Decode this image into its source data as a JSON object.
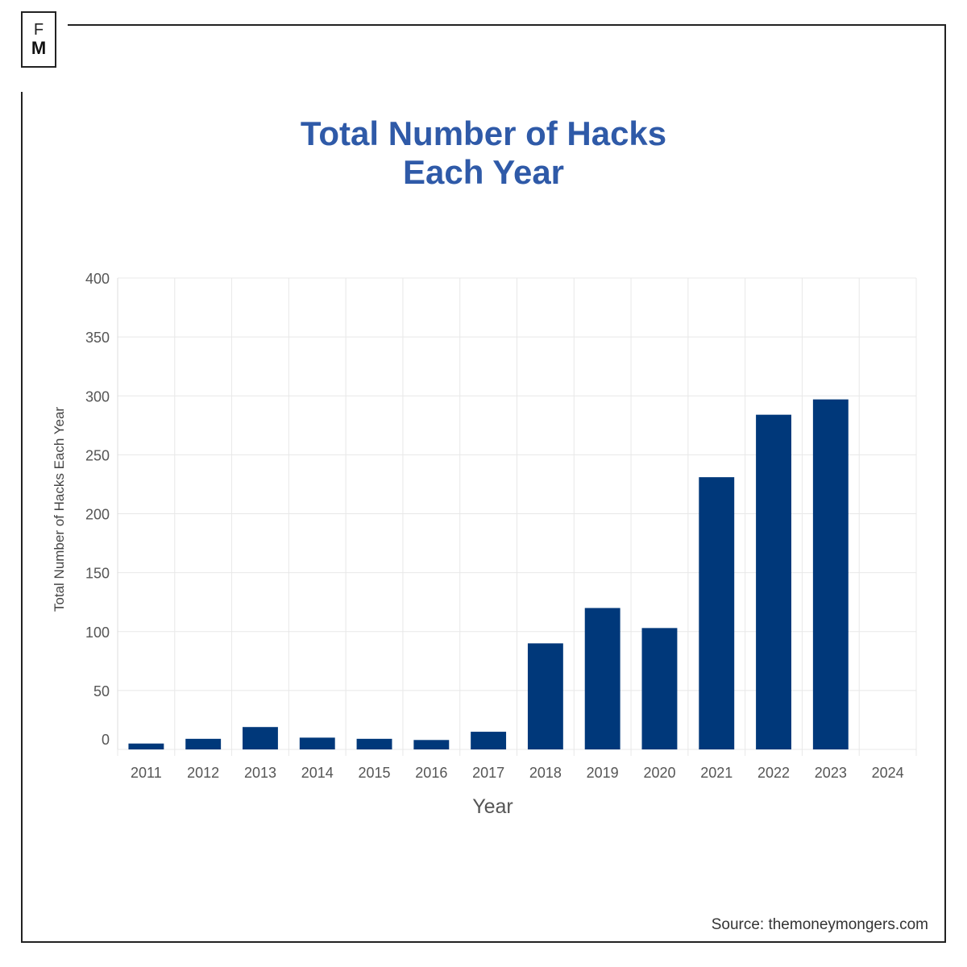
{
  "logo": {
    "line1": "F",
    "line2": "M"
  },
  "source": "Source: themoneymongers.com",
  "chart_data": {
    "type": "bar",
    "title": "Total Number of Hacks Each Year",
    "title_lines": [
      "Total Number of Hacks",
      "Each Year"
    ],
    "xlabel": "Year",
    "ylabel": "Total Number of Hacks Each Year",
    "categories": [
      "2011",
      "2012",
      "2013",
      "2014",
      "2015",
      "2016",
      "2017",
      "2018",
      "2019",
      "2020",
      "2021",
      "2022",
      "2023",
      "2024"
    ],
    "values": [
      5,
      9,
      19,
      10,
      9,
      8,
      15,
      90,
      120,
      103,
      231,
      284,
      297,
      0
    ],
    "ylim": [
      0,
      400
    ],
    "yticks": [
      0,
      50,
      100,
      150,
      200,
      250,
      300,
      350,
      400
    ],
    "grid": true,
    "legend": "none",
    "colors": {
      "bar": "#00387a",
      "title": "#2f5aa8",
      "grid": "#e8e8e8"
    }
  }
}
